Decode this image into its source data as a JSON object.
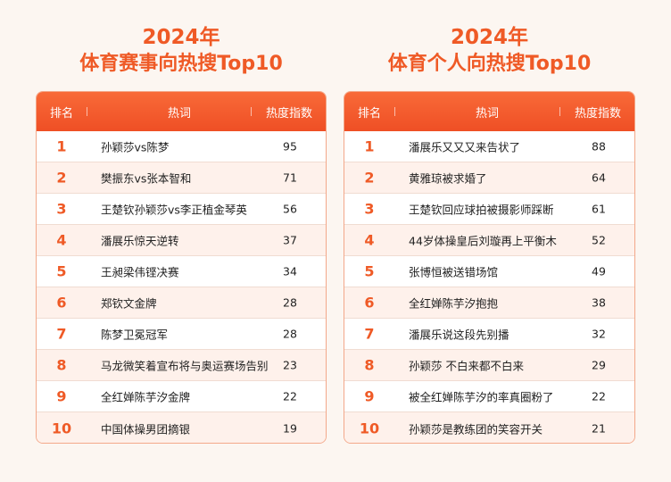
{
  "left": {
    "title_line1": "2024年",
    "title_line2": "体育赛事向热搜Top10",
    "headers": {
      "rank": "排名",
      "topic": "热词",
      "heat": "热度指数"
    },
    "rows": [
      {
        "rank": "1",
        "topic": "孙颖莎vs陈梦",
        "heat": "95"
      },
      {
        "rank": "2",
        "topic": "樊振东vs张本智和",
        "heat": "71"
      },
      {
        "rank": "3",
        "topic": "王楚钦孙颖莎vs李正植金琴英",
        "heat": "56"
      },
      {
        "rank": "4",
        "topic": "潘展乐惊天逆转",
        "heat": "37"
      },
      {
        "rank": "5",
        "topic": "王昶梁伟铿决赛",
        "heat": "34"
      },
      {
        "rank": "6",
        "topic": "郑钦文金牌",
        "heat": "28"
      },
      {
        "rank": "7",
        "topic": "陈梦卫冕冠军",
        "heat": "28"
      },
      {
        "rank": "8",
        "topic": "马龙微笑着宣布将与奥运赛场告别",
        "heat": "23"
      },
      {
        "rank": "9",
        "topic": "全红婵陈芋汐金牌",
        "heat": "22"
      },
      {
        "rank": "10",
        "topic": "中国体操男团摘银",
        "heat": "19"
      }
    ]
  },
  "right": {
    "title_line1": "2024年",
    "title_line2": "体育个人向热搜Top10",
    "headers": {
      "rank": "排名",
      "topic": "热词",
      "heat": "热度指数"
    },
    "rows": [
      {
        "rank": "1",
        "topic": "潘展乐又又又来告状了",
        "heat": "88"
      },
      {
        "rank": "2",
        "topic": "黄雅琼被求婚了",
        "heat": "64"
      },
      {
        "rank": "3",
        "topic": "王楚钦回应球拍被摄影师踩断",
        "heat": "61"
      },
      {
        "rank": "4",
        "topic": "44岁体操皇后刘璇再上平衡木",
        "heat": "52"
      },
      {
        "rank": "5",
        "topic": "张博恒被送错场馆",
        "heat": "49"
      },
      {
        "rank": "6",
        "topic": "全红婵陈芋汐抱抱",
        "heat": "38"
      },
      {
        "rank": "7",
        "topic": "潘展乐说这段先别播",
        "heat": "32"
      },
      {
        "rank": "8",
        "topic": "孙颖莎 不白来都不白来",
        "heat": "29"
      },
      {
        "rank": "9",
        "topic": "被全红婵陈芋汐的率真圈粉了",
        "heat": "22"
      },
      {
        "rank": "10",
        "topic": "孙颖莎是教练团的笑容开关",
        "heat": "21"
      }
    ]
  },
  "colors": {
    "accent": "#ef5a26",
    "header_bg": "#f25a2c",
    "row_alt": "#fef1eb",
    "page_bg": "#fcf6f1"
  }
}
